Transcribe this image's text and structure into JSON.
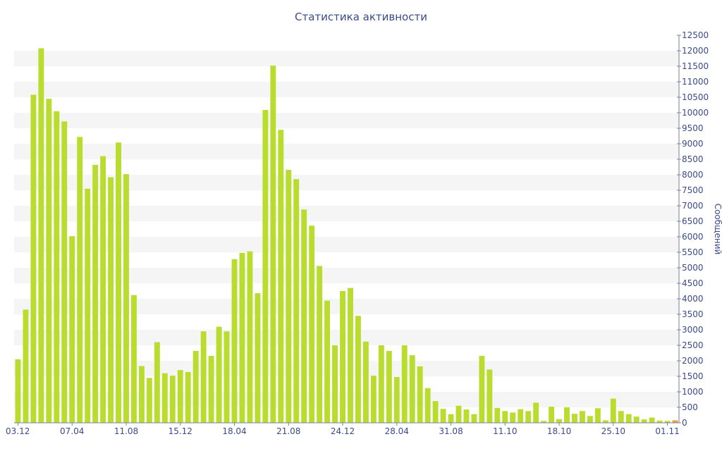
{
  "chart_data": {
    "type": "bar",
    "title": "Статистика активности",
    "ylabel": "Сообщений",
    "xlabel": "",
    "ylim": [
      0,
      12500
    ],
    "y_ticks": [
      0,
      500,
      1000,
      1500,
      2000,
      2500,
      3000,
      3500,
      4000,
      4500,
      5000,
      5500,
      6000,
      6500,
      7000,
      7500,
      8000,
      8500,
      9000,
      9500,
      10000,
      10500,
      11000,
      11500,
      12000,
      12500
    ],
    "x_tick_labels": [
      {
        "label": "03.12",
        "index": 0
      },
      {
        "label": "07.04",
        "index": 7
      },
      {
        "label": "11.08",
        "index": 14
      },
      {
        "label": "15.12",
        "index": 21
      },
      {
        "label": "18.04",
        "index": 28
      },
      {
        "label": "21.08",
        "index": 35
      },
      {
        "label": "24.12",
        "index": 42
      },
      {
        "label": "28.04",
        "index": 49
      },
      {
        "label": "31.08",
        "index": 56
      },
      {
        "label": "11.10",
        "index": 63
      },
      {
        "label": "18.10",
        "index": 70
      },
      {
        "label": "25.10",
        "index": 77
      },
      {
        "label": "01.11",
        "index": 84
      }
    ],
    "bar_color": "#b9dc2e",
    "highlight_color": "#e8a040",
    "band_color": "#f5f5f5",
    "text_color": "#3a4a8a",
    "y_axis_position": "right",
    "grid": "alternating horizontal bands",
    "values": [
      2050,
      3650,
      10580,
      12080,
      10450,
      10050,
      9720,
      6020,
      9220,
      7550,
      8320,
      8600,
      7920,
      9040,
      8020,
      4120,
      1830,
      1450,
      2600,
      1600,
      1520,
      1700,
      1640,
      2320,
      2950,
      2160,
      3100,
      2950,
      5280,
      5480,
      5530,
      4180,
      10090,
      11520,
      9450,
      8160,
      7860,
      6880,
      6360,
      5060,
      3940,
      2500,
      4250,
      4350,
      3450,
      2620,
      1520,
      2500,
      2320,
      1480,
      2500,
      2180,
      1820,
      1120,
      700,
      450,
      280,
      550,
      430,
      280,
      2160,
      1720,
      480,
      380,
      330,
      440,
      380,
      650,
      60,
      520,
      120,
      500,
      290,
      380,
      220,
      470,
      80,
      780,
      380,
      280,
      200,
      110,
      170,
      70,
      60,
      80
    ],
    "highlighted_index": 85
  }
}
